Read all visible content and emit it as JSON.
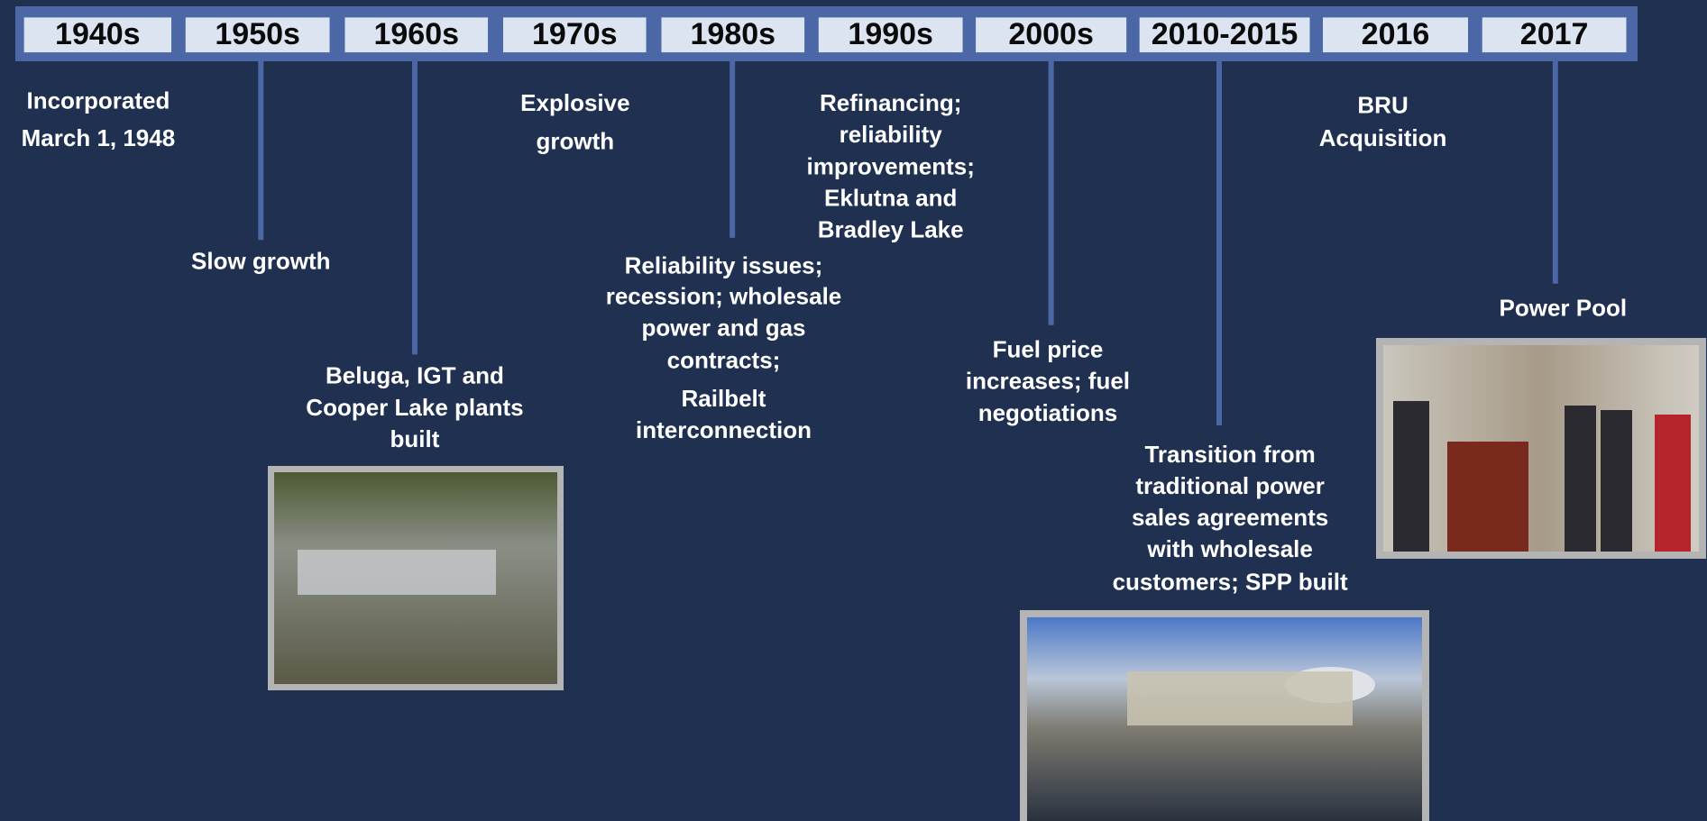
{
  "eras": [
    {
      "label": "1940s",
      "lines": [
        "Incorporated",
        "March 1, 1948"
      ]
    },
    {
      "label": "1950s",
      "lines": [
        "Slow growth"
      ]
    },
    {
      "label": "1960s",
      "lines": [
        "Beluga, IGT and",
        "Cooper Lake plants",
        "built"
      ]
    },
    {
      "label": "1970s",
      "lines": [
        "Explosive",
        "growth"
      ]
    },
    {
      "label": "1980s",
      "lines": [
        "Reliability issues;",
        "recession; wholesale",
        "power and gas",
        "contracts;",
        "Railbelt",
        "interconnection"
      ]
    },
    {
      "label": "1990s",
      "lines": [
        "Refinancing;",
        "reliability",
        "improvements;",
        "Eklutna and",
        "Bradley Lake"
      ]
    },
    {
      "label": "2000s",
      "lines": [
        "Fuel price",
        "increases; fuel",
        "negotiations"
      ]
    },
    {
      "label": "2010-2015",
      "lines": [
        "Transition from",
        "traditional power",
        "sales agreements",
        "with wholesale",
        "customers; SPP built"
      ]
    },
    {
      "label": "2016",
      "lines": [
        "BRU",
        "Acquisition"
      ]
    },
    {
      "label": "2017",
      "lines": [
        "Power Pool"
      ]
    }
  ]
}
